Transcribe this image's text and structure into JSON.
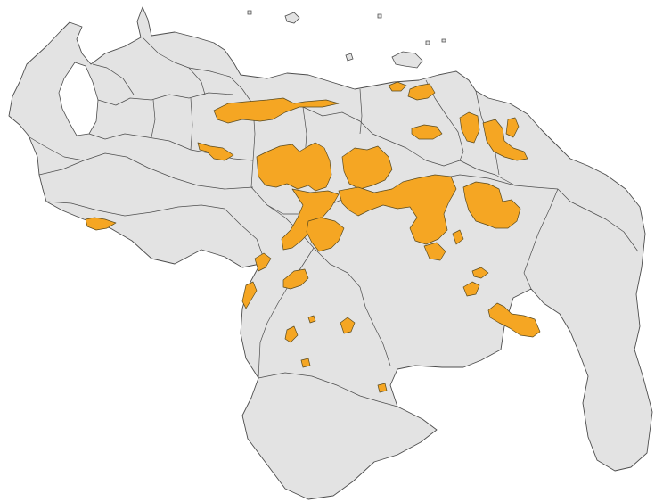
{
  "map": {
    "region": "Venezuela",
    "style": "choropleth outline, administrative state borders",
    "colors": {
      "background": "#ffffff",
      "land": "#e3e3e3",
      "border": "#4d4d4d",
      "highlight": "#f5a623"
    },
    "legend": null,
    "title": null
  }
}
